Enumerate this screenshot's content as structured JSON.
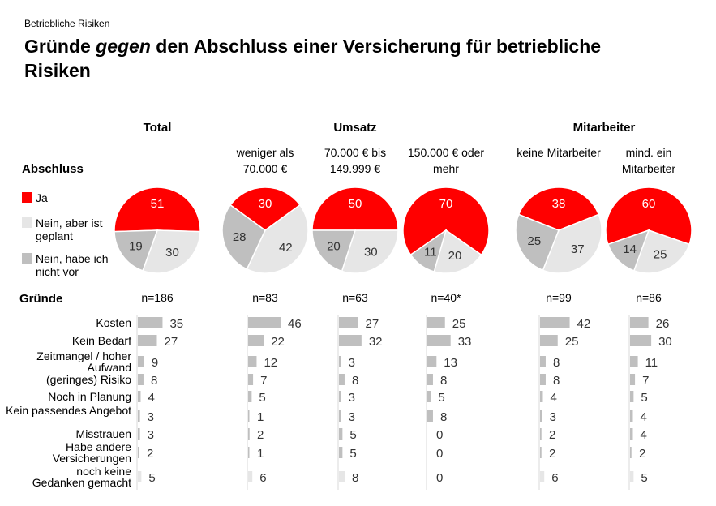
{
  "supertitle": "Betriebliche Risiken",
  "title_parts": [
    "Gründe ",
    "gegen",
    " den Abschluss einer Versicherung für betriebliche Risiken"
  ],
  "groups": [
    "Total",
    "Umsatz",
    "Mitarbeiter"
  ],
  "abschluss_label": "Abschluss",
  "gruende_label": "Gründe",
  "legend": [
    {
      "label": "Ja",
      "color": "#ff0000"
    },
    {
      "label": "Nein, aber ist geplant",
      "color": "#e6e6e6"
    },
    {
      "label": "Nein, habe ich nicht vor",
      "color": "#bfbfbf"
    }
  ],
  "chart_data": {
    "type": "pie+bar",
    "columns": [
      {
        "name": "",
        "n": "n=186",
        "pie": [
          51,
          30,
          19
        ],
        "bars": [
          35,
          27,
          9,
          8,
          4,
          3,
          3,
          2,
          5
        ]
      },
      {
        "name": "weniger als 70.000 €",
        "n": "n=83",
        "pie": [
          30,
          42,
          28
        ],
        "bars": [
          46,
          22,
          12,
          7,
          5,
          1,
          2,
          1,
          6
        ]
      },
      {
        "name": "70.000 € bis 149.999 €",
        "n": "n=63",
        "pie": [
          50,
          30,
          20
        ],
        "bars": [
          27,
          32,
          3,
          8,
          3,
          3,
          5,
          5,
          8
        ]
      },
      {
        "name": "150.000 € oder mehr",
        "n": "n=40*",
        "pie": [
          70,
          20,
          11
        ],
        "bars": [
          25,
          33,
          13,
          8,
          5,
          8,
          0,
          0,
          0
        ]
      },
      {
        "name": "keine Mitarbeiter",
        "n": "n=99",
        "pie": [
          38,
          37,
          25
        ],
        "bars": [
          42,
          25,
          8,
          8,
          4,
          3,
          2,
          2,
          6
        ]
      },
      {
        "name": "mind. ein Mitarbeiter",
        "n": "n=86",
        "pie": [
          60,
          25,
          14
        ],
        "bars": [
          26,
          30,
          11,
          7,
          5,
          4,
          4,
          2,
          5
        ]
      }
    ],
    "categories": [
      "Kosten",
      "Kein Bedarf",
      "Zeitmangel / hoher Aufwand",
      "(geringes) Risiko",
      "Noch in Planung",
      "Kein passendes Angebot",
      "Misstrauen",
      "Habe andere Versicherungen",
      "noch keine Gedanken gemacht"
    ],
    "bar_color": "#bfbfbf",
    "last_bar_color": "#e6e6e6"
  }
}
